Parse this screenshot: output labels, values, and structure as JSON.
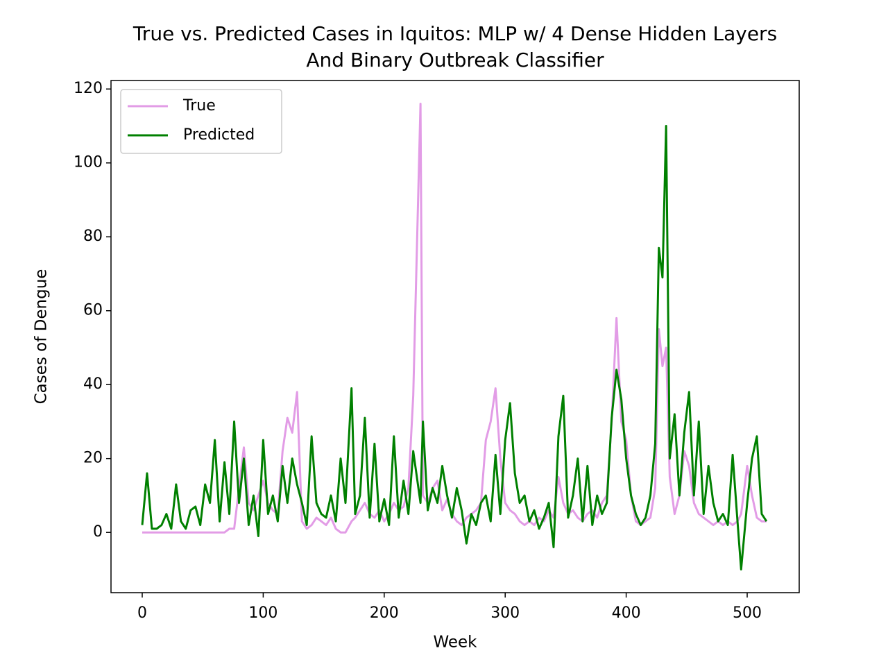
{
  "chart_data": {
    "type": "line",
    "title": [
      "True vs. Predicted Cases in Iquitos: MLP w/ 4 Dense Hidden Layers",
      "And Binary Outbreak Classifier"
    ],
    "xlabel": "Week",
    "ylabel": "Cases of Dengue",
    "x": [
      0,
      4,
      8,
      12,
      16,
      20,
      24,
      28,
      32,
      36,
      40,
      44,
      48,
      52,
      56,
      60,
      64,
      68,
      72,
      76,
      80,
      84,
      88,
      92,
      96,
      100,
      104,
      108,
      112,
      116,
      120,
      124,
      128,
      132,
      136,
      140,
      144,
      148,
      152,
      156,
      160,
      164,
      168,
      173,
      176,
      180,
      184,
      188,
      192,
      196,
      200,
      204,
      208,
      212,
      216,
      220,
      224,
      230,
      232,
      236,
      240,
      244,
      248,
      252,
      256,
      260,
      264,
      268,
      272,
      276,
      280,
      284,
      288,
      292,
      296,
      300,
      304,
      308,
      312,
      316,
      320,
      324,
      328,
      332,
      336,
      340,
      344,
      348,
      352,
      356,
      360,
      364,
      368,
      372,
      376,
      380,
      384,
      388,
      392,
      396,
      400,
      404,
      408,
      412,
      416,
      420,
      424,
      427,
      430,
      433,
      436,
      440,
      444,
      448,
      452,
      456,
      460,
      464,
      468,
      472,
      476,
      480,
      484,
      488,
      492,
      495,
      500,
      504,
      508,
      512,
      516
    ],
    "series": [
      {
        "name": "True",
        "color": "#e29ce6",
        "values": [
          0,
          0,
          0,
          0,
          0,
          0,
          0,
          0,
          0,
          0,
          0,
          0,
          0,
          0,
          0,
          0,
          0,
          0,
          1,
          1,
          12,
          23,
          8,
          6,
          10,
          14,
          8,
          6,
          5,
          22,
          31,
          27,
          38,
          3,
          1,
          2,
          4,
          3,
          2,
          4,
          1,
          0,
          0,
          3,
          4,
          6,
          8,
          5,
          4,
          6,
          3,
          5,
          8,
          6,
          7,
          12,
          37,
          116,
          10,
          8,
          12,
          14,
          6,
          9,
          5,
          3,
          2,
          4,
          5,
          6,
          8,
          25,
          30,
          39,
          20,
          8,
          6,
          5,
          3,
          2,
          3,
          2,
          4,
          3,
          6,
          4,
          15,
          8,
          5,
          6,
          4,
          3,
          5,
          6,
          4,
          8,
          10,
          30,
          58,
          30,
          25,
          10,
          3,
          2,
          3,
          4,
          12,
          55,
          45,
          50,
          15,
          5,
          10,
          22,
          18,
          8,
          5,
          4,
          3,
          2,
          3,
          2,
          3,
          2,
          3,
          5,
          18,
          10,
          4,
          3,
          3
        ]
      },
      {
        "name": "Predicted",
        "color": "#008000",
        "values": [
          2,
          16,
          1,
          1,
          2,
          5,
          1,
          13,
          3,
          1,
          6,
          7,
          2,
          13,
          8,
          25,
          3,
          19,
          5,
          30,
          8,
          20,
          2,
          10,
          -1,
          25,
          5,
          10,
          3,
          18,
          8,
          20,
          13,
          8,
          2,
          26,
          8,
          5,
          4,
          10,
          3,
          20,
          8,
          39,
          5,
          10,
          31,
          4,
          24,
          3,
          9,
          2,
          26,
          4,
          14,
          5,
          22,
          8,
          30,
          6,
          12,
          8,
          18,
          10,
          4,
          12,
          6,
          -3,
          5,
          2,
          8,
          10,
          3,
          21,
          5,
          25,
          35,
          16,
          8,
          10,
          3,
          6,
          1,
          4,
          8,
          -4,
          26,
          37,
          4,
          10,
          20,
          3,
          18,
          2,
          10,
          5,
          8,
          31,
          44,
          36,
          20,
          10,
          5,
          2,
          4,
          10,
          24,
          77,
          69,
          110,
          20,
          32,
          10,
          27,
          38,
          10,
          30,
          5,
          18,
          8,
          3,
          5,
          2,
          21,
          3,
          -10,
          8,
          20,
          26,
          5,
          3
        ]
      }
    ],
    "xlim": [
      -25.8,
      543
    ],
    "ylim": [
      -16.3,
      122.3
    ],
    "xticks": [
      0,
      100,
      200,
      300,
      400,
      500
    ],
    "yticks": [
      0,
      20,
      40,
      60,
      80,
      100,
      120
    ],
    "legend": "upper left"
  }
}
